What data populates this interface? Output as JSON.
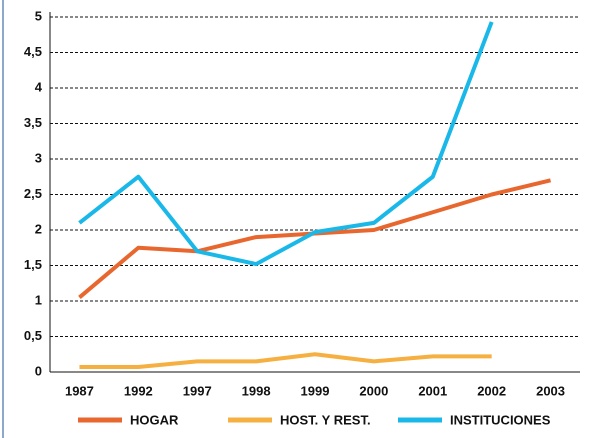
{
  "chart_data": {
    "type": "line",
    "categories": [
      "1987",
      "1992",
      "1997",
      "1998",
      "1999",
      "2000",
      "2001",
      "2002",
      "2003"
    ],
    "series": [
      {
        "name": "HOGAR",
        "color": "#e8672e",
        "values": [
          1.05,
          1.75,
          1.7,
          1.9,
          1.95,
          2,
          2.25,
          2.5,
          2.7
        ]
      },
      {
        "name": "HOST. Y REST.",
        "color": "#f5b041",
        "values": [
          0.07,
          0.07,
          0.15,
          0.15,
          0.25,
          0.15,
          0.22,
          0.22,
          null
        ]
      },
      {
        "name": "INSTITUCIONES",
        "color": "#1ab8e8",
        "values": [
          2.1,
          2.75,
          1.7,
          1.52,
          1.97,
          2.1,
          2.75,
          4.93,
          null
        ]
      }
    ],
    "ylim": [
      0,
      5
    ],
    "yticks": [
      0,
      {
        "value": 0.5,
        "label": "0,5"
      },
      1,
      {
        "value": 1.5,
        "label": "1,5"
      },
      2,
      {
        "value": 2.5,
        "label": "2,5"
      },
      3,
      {
        "value": 3.5,
        "label": "3,5"
      },
      4,
      {
        "value": 4.5,
        "label": "4,5"
      },
      5
    ],
    "grid": true,
    "legend": "bottom"
  }
}
